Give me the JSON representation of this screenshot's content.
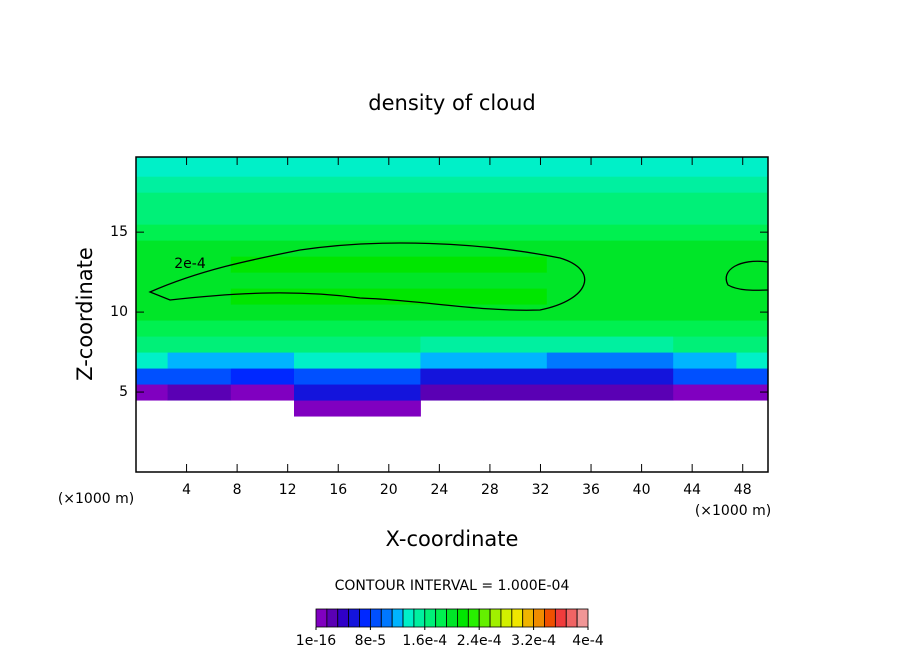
{
  "chart_data": {
    "type": "contour",
    "title": "density of cloud",
    "xlabel": "X-coordinate",
    "ylabel": "Z-coordinate",
    "x_unit": "(×1000 m)",
    "contour_interval": "CONTOUR INTERVAL = 1.000E-04",
    "contour_label": "2e-4",
    "xlim": [
      0,
      50
    ],
    "ylim": [
      0,
      19.7
    ],
    "xticks": [
      4,
      8,
      12,
      16,
      20,
      24,
      28,
      32,
      36,
      40,
      44,
      48
    ],
    "yticks": [
      5,
      10,
      15
    ],
    "x": [
      0,
      5,
      10,
      15,
      20,
      25,
      30,
      35,
      40,
      45,
      50
    ],
    "z": [
      4,
      5,
      6,
      7,
      8,
      9,
      10,
      11,
      12,
      13,
      14,
      15,
      16,
      17,
      18,
      19
    ],
    "values": [
      [
        null,
        null,
        null,
        5e-06,
        5e-06,
        null,
        null,
        null,
        null,
        null,
        null
      ],
      [
        1.5e-05,
        2e-05,
        1.5e-05,
        5e-05,
        5e-05,
        2e-05,
        2e-05,
        2e-05,
        2e-05,
        1.5e-05,
        1.5e-05
      ],
      [
        9e-05,
        8e-05,
        7e-05,
        8e-05,
        8e-05,
        6e-05,
        6e-05,
        6e-05,
        5e-05,
        9e-05,
        9e-05
      ],
      [
        0.00013,
        0.00012,
        0.00012,
        0.00013,
        0.00013,
        0.00012,
        0.00012,
        0.00011,
        0.0001,
        0.00012,
        0.00013
      ],
      [
        0.00016,
        0.00016,
        0.00016,
        0.00016,
        0.00016,
        0.00015,
        0.00015,
        0.00015,
        0.00015,
        0.00016,
        0.00016
      ],
      [
        0.00018,
        0.00018,
        0.00018,
        0.00018,
        0.00018,
        0.00018,
        0.00018,
        0.00018,
        0.00018,
        0.00018,
        0.00018
      ],
      [
        0.000195,
        0.000195,
        0.000195,
        0.000195,
        0.000195,
        0.000195,
        0.000195,
        0.000195,
        0.000195,
        0.000195,
        0.000195
      ],
      [
        0.000195,
        0.000195,
        0.00021,
        0.00021,
        0.00021,
        0.00021,
        0.00021,
        0.000195,
        0.000195,
        0.000195,
        0.000195
      ],
      [
        0.000205,
        0.000205,
        0.000205,
        0.000205,
        0.000205,
        0.000205,
        0.000205,
        0.000205,
        0.000205,
        0.000205,
        0.000205
      ],
      [
        0.000195,
        0.000195,
        0.00021,
        0.00021,
        0.00021,
        0.00021,
        0.00021,
        0.000195,
        0.000195,
        0.000195,
        0.000195
      ],
      [
        0.000195,
        0.000195,
        0.000195,
        0.000195,
        0.000195,
        0.000195,
        0.000195,
        0.000195,
        0.000195,
        0.000195,
        0.000195
      ],
      [
        0.000185,
        0.000185,
        0.000185,
        0.000185,
        0.000185,
        0.000185,
        0.000185,
        0.000185,
        0.000185,
        0.000185,
        0.000185
      ],
      [
        0.000175,
        0.000175,
        0.000175,
        0.000175,
        0.000175,
        0.000175,
        0.000175,
        0.000175,
        0.000175,
        0.000175,
        0.000175
      ],
      [
        0.00016,
        0.00016,
        0.00016,
        0.00016,
        0.00016,
        0.00016,
        0.00016,
        0.00016,
        0.00016,
        0.00016,
        0.00016
      ],
      [
        0.000145,
        0.000145,
        0.000145,
        0.000145,
        0.000145,
        0.000145,
        0.000145,
        0.000145,
        0.000145,
        0.000145,
        0.000145
      ],
      [
        0.000135,
        0.000135,
        0.000135,
        0.000135,
        0.000135,
        0.000135,
        0.000135,
        0.000135,
        0.000135,
        0.000135,
        0.000135
      ]
    ],
    "levels": [
      1e-16,
      1.6e-05,
      3.2e-05,
      4.8e-05,
      6.4e-05,
      8e-05,
      9.6e-05,
      0.000112,
      0.000128,
      0.000144,
      0.00016,
      0.000176,
      0.000192,
      0.000208,
      0.000224,
      0.00024,
      0.000256,
      0.000272,
      0.000288,
      0.000304,
      0.00032,
      0.000336,
      0.000352,
      0.000368,
      0.000384,
      0.0004
    ],
    "colors": [
      "#8000c0",
      "#5a00b4",
      "#3000c8",
      "#1414dc",
      "#0028ff",
      "#0050ff",
      "#0078ff",
      "#00b4ff",
      "#00f0c8",
      "#00f0a0",
      "#00f078",
      "#00f050",
      "#00e628",
      "#00e600",
      "#28f000",
      "#64f000",
      "#a0f000",
      "#d2f000",
      "#f0e600",
      "#f0b400",
      "#f08c00",
      "#f05000",
      "#f03c3c",
      "#f06464",
      "#f09696"
    ],
    "colorbar_ticks": [
      {
        "value": 1e-16,
        "label": "1e-16"
      },
      {
        "value": 8e-05,
        "label": "8e-5"
      },
      {
        "value": 0.00016,
        "label": "1.6e-4"
      },
      {
        "value": 0.00024,
        "label": "2.4e-4"
      },
      {
        "value": 0.00032,
        "label": "3.2e-4"
      },
      {
        "value": 0.0004,
        "label": "4e-4"
      }
    ]
  }
}
